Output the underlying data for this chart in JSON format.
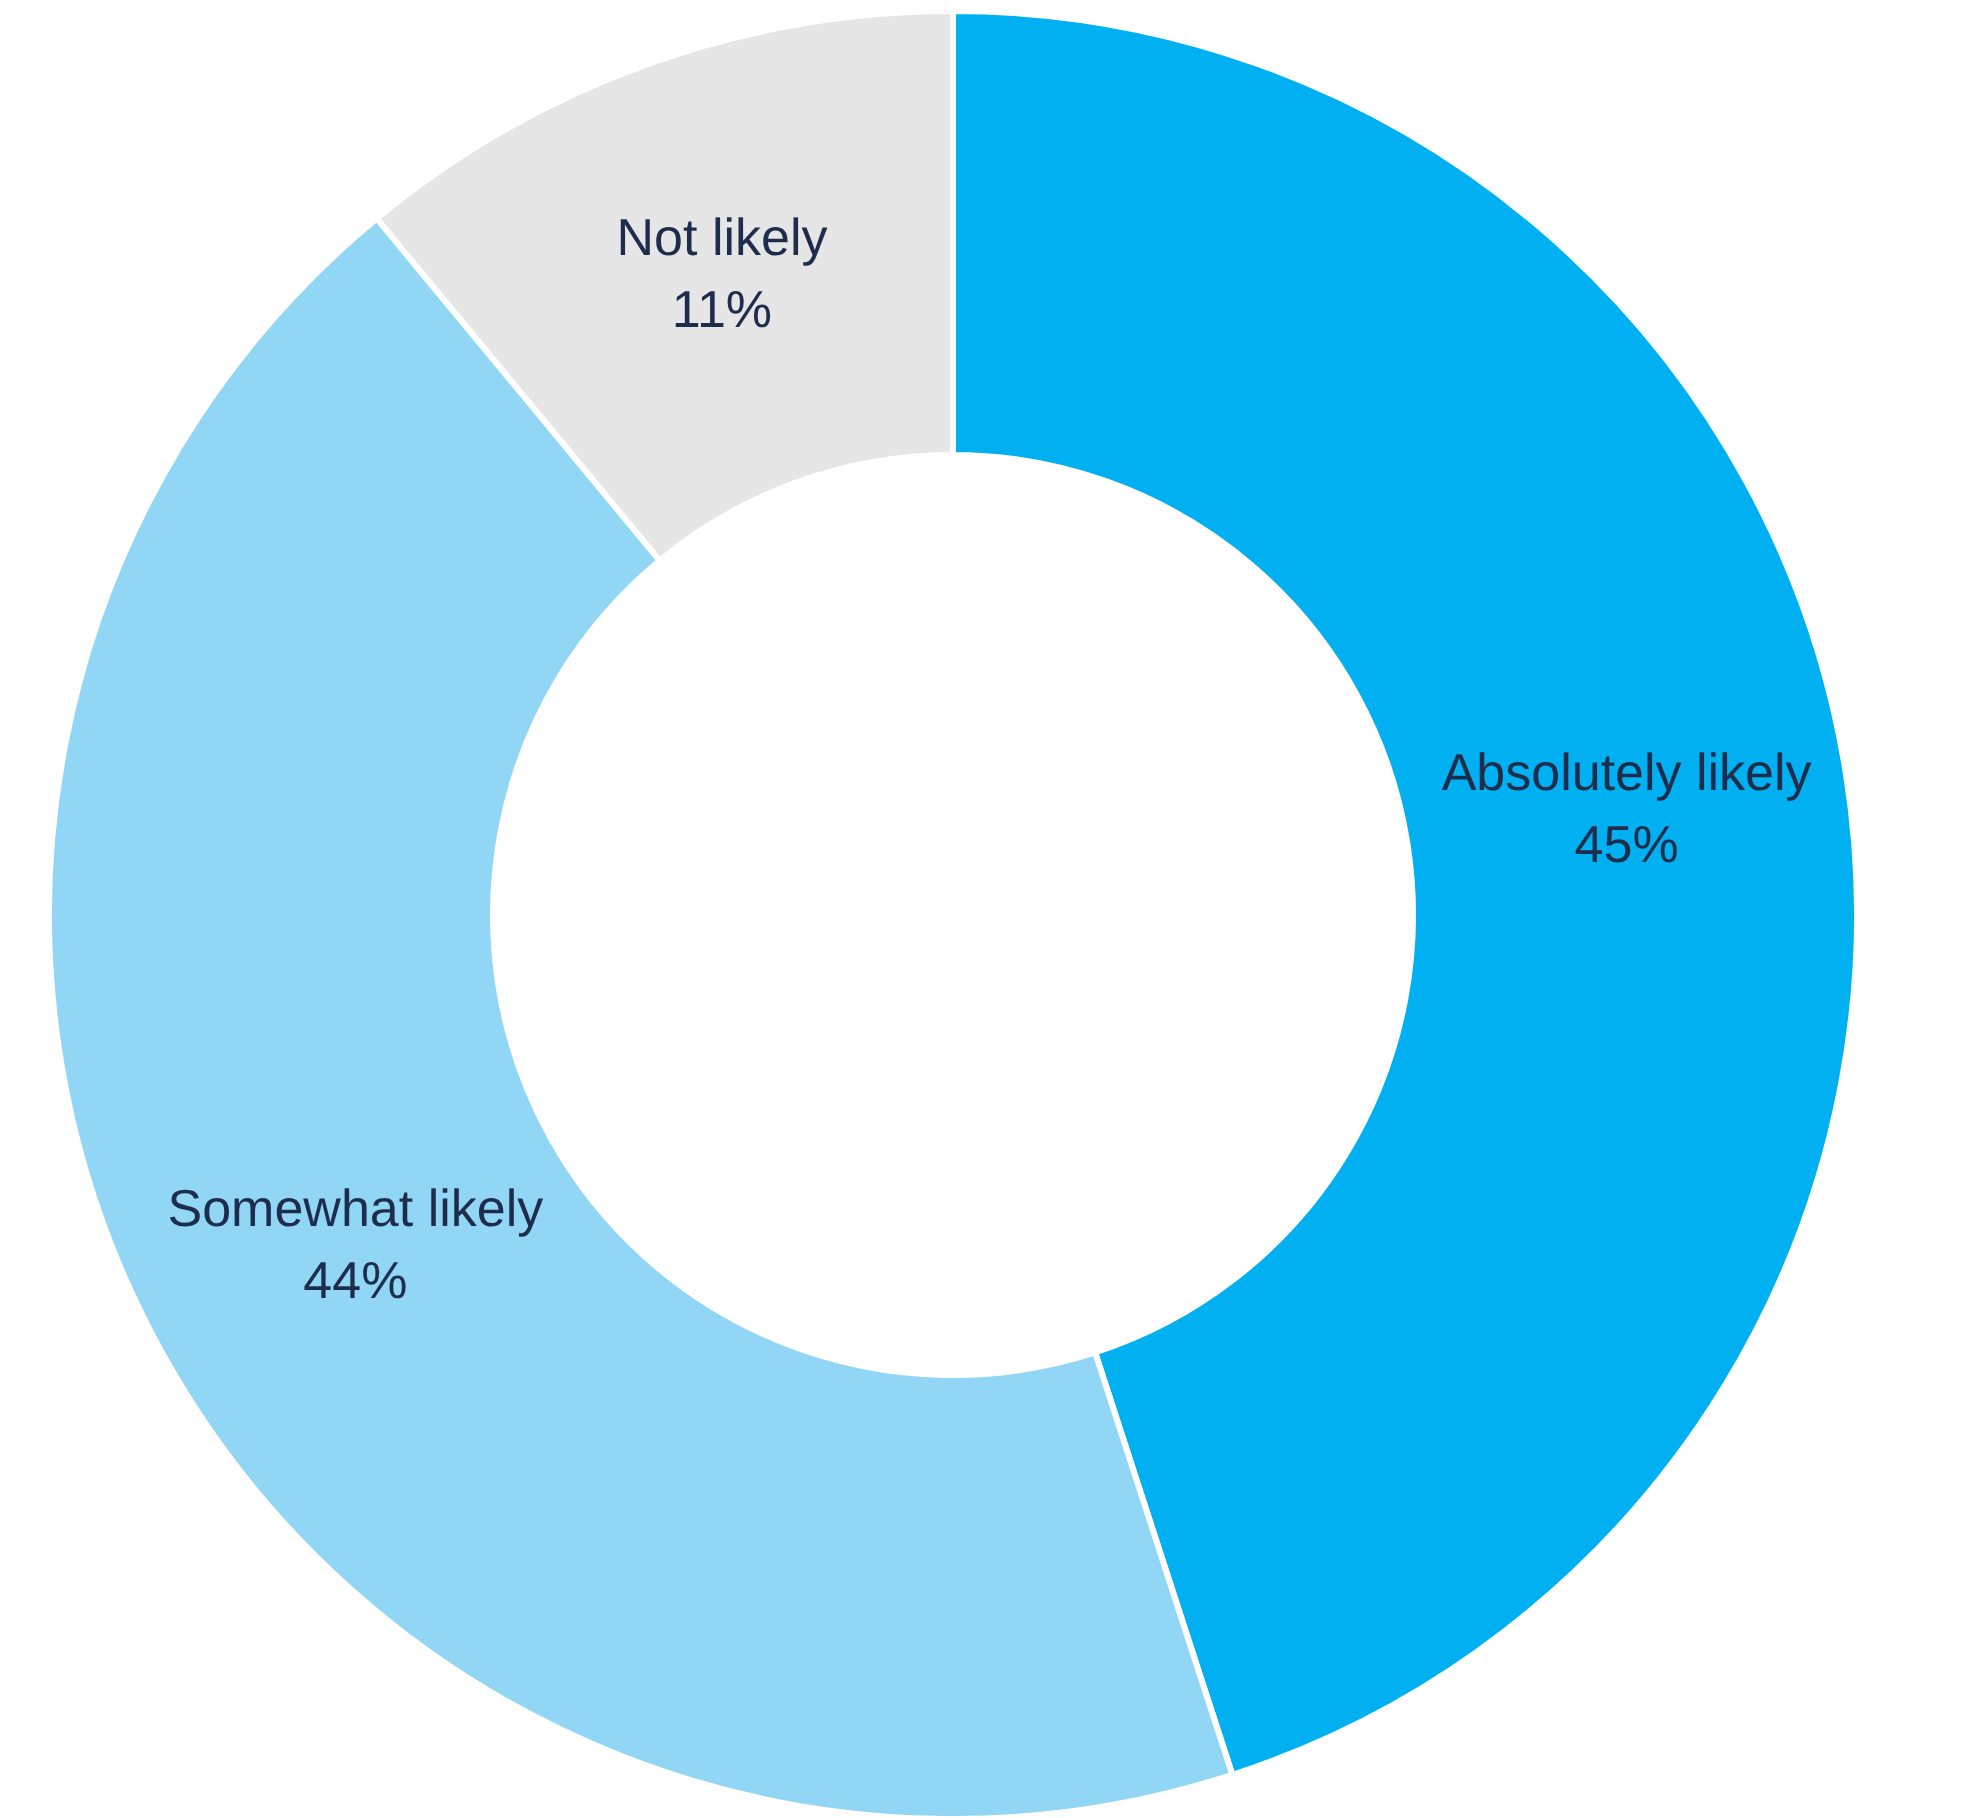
{
  "chart_data": {
    "type": "donut",
    "categories": [
      "Absolutely likely",
      "Somewhat likely",
      "Not likely"
    ],
    "values": [
      45,
      44,
      11
    ],
    "colors": [
      "#00b0f0",
      "#92d6f6",
      "#e6e6e6"
    ],
    "value_labels": [
      "45%",
      "44%",
      "11%"
    ]
  }
}
